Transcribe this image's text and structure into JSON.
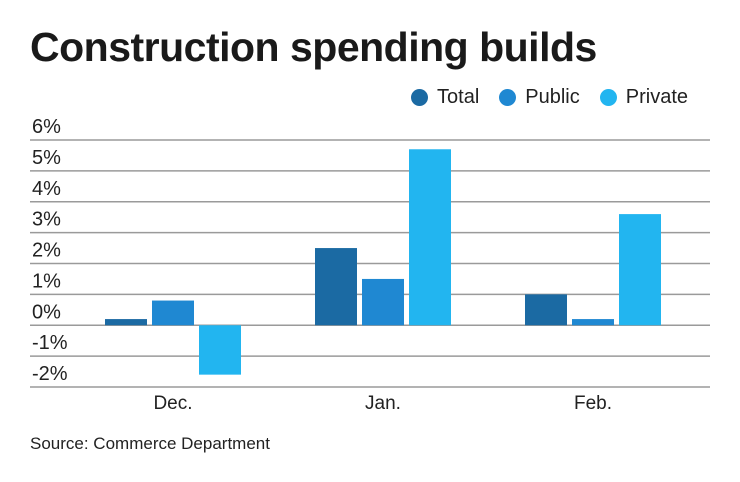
{
  "title": "Construction spending builds",
  "source": "Source: Commerce Department",
  "chart_data": {
    "type": "bar",
    "title": "Construction spending builds",
    "categories": [
      "Dec.",
      "Jan.",
      "Feb."
    ],
    "series": [
      {
        "name": "Total",
        "color": "#1b6aa3",
        "values": [
          0.2,
          2.5,
          1.0
        ]
      },
      {
        "name": "Public",
        "color": "#1f88d2",
        "values": [
          0.8,
          1.5,
          0.2
        ]
      },
      {
        "name": "Private",
        "color": "#22b5f0",
        "values": [
          -1.6,
          5.7,
          3.6
        ]
      }
    ],
    "ylim": [
      -2,
      6
    ],
    "yticks": [
      "6%",
      "5%",
      "4%",
      "3%",
      "2%",
      "1%",
      "0%",
      "-1%",
      "-2%"
    ],
    "ytick_values": [
      6,
      5,
      4,
      3,
      2,
      1,
      0,
      -1,
      -2
    ],
    "grid": true,
    "legend": "top-right",
    "xlabel": "",
    "ylabel": ""
  }
}
